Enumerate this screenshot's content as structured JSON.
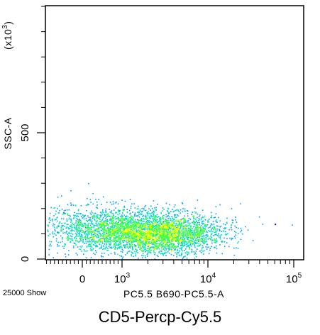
{
  "chart_data": {
    "type": "scatter",
    "style": "density-dot-plot",
    "xlabel": "PC5.5 B690-PC5.5-A",
    "ylabel": "SSC-A",
    "y_multiplier_label": "(x10",
    "y_multiplier_exp": "3",
    "y_multiplier_close": ")",
    "x_scale": "biexponential",
    "xlim": [
      -500,
      100000
    ],
    "ylim": [
      0,
      1000
    ],
    "x_ticks": [
      {
        "value": 0,
        "label": "0"
      },
      {
        "value": 1000,
        "label": "10",
        "exp": "3"
      },
      {
        "value": 10000,
        "label": "10",
        "exp": "4"
      },
      {
        "value": 100000,
        "label": "10",
        "exp": "5"
      }
    ],
    "y_ticks": [
      {
        "value": 0,
        "label": "0"
      },
      {
        "value": 500,
        "label": "500"
      }
    ],
    "event_count_label": "25000 Show",
    "caption": "CD5-Percp-Cy5.5",
    "density_colors": [
      "#0000ff",
      "#00a0ff",
      "#00e0c0",
      "#40ff40",
      "#c0ff00",
      "#ffff00"
    ],
    "populations": [
      {
        "x_center": 700,
        "x_spread_decades": 0.45,
        "y_center": 120,
        "y_spread": 45,
        "weight": 0.45
      },
      {
        "x_center": 3000,
        "x_spread_decades": 0.35,
        "y_center": 100,
        "y_spread": 40,
        "weight": 0.55
      }
    ],
    "outlier_points": [
      {
        "x": 60000,
        "y": 140
      }
    ]
  }
}
